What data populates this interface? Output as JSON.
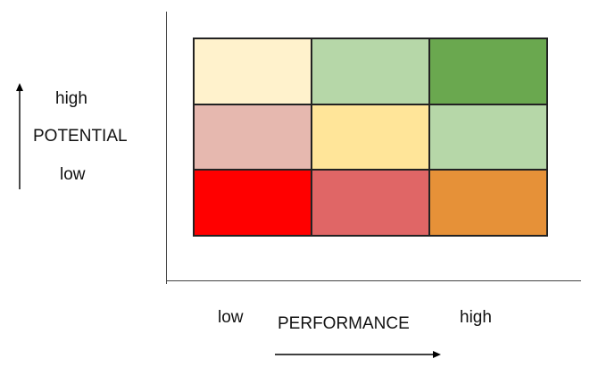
{
  "y_axis": {
    "high_label": "high",
    "title": "POTENTIAL",
    "low_label": "low"
  },
  "x_axis": {
    "low_label": "low",
    "title": "PERFORMANCE",
    "high_label": "high"
  },
  "matrix": {
    "rows": [
      {
        "cells": [
          {
            "color": "#fff2cc"
          },
          {
            "color": "#b6d7a8"
          },
          {
            "color": "#6aa84f"
          }
        ]
      },
      {
        "cells": [
          {
            "color": "#e6b8af"
          },
          {
            "color": "#ffe599"
          },
          {
            "color": "#b6d7a8"
          }
        ]
      },
      {
        "cells": [
          {
            "color": "#ff0000"
          },
          {
            "color": "#e06666"
          },
          {
            "color": "#e69138"
          }
        ]
      }
    ]
  }
}
